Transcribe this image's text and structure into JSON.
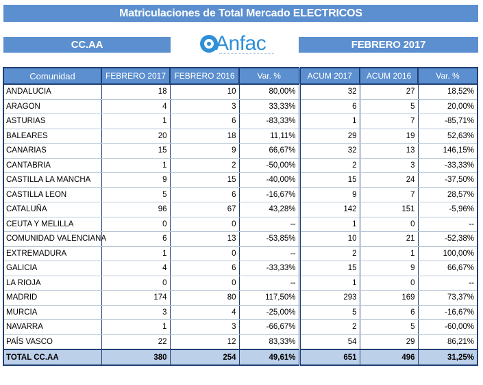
{
  "header": {
    "title": "Matriculaciones de Total Mercado ELECTRICOS",
    "left_label": "CC.AA",
    "right_label": "FEBRERO 2017",
    "logo_text": "Anfac"
  },
  "table": {
    "columns": [
      "Comunidad",
      "FEBRERO  2017",
      "FEBRERO  2016",
      "Var. %",
      "ACUM 2017",
      "ACUM 2016",
      "Var. %"
    ],
    "rows": [
      [
        "ANDALUCIA",
        "18",
        "10",
        "80,00%",
        "32",
        "27",
        "18,52%"
      ],
      [
        "ARAGON",
        "4",
        "3",
        "33,33%",
        "6",
        "5",
        "20,00%"
      ],
      [
        "ASTURIAS",
        "1",
        "6",
        "-83,33%",
        "1",
        "7",
        "-85,71%"
      ],
      [
        "BALEARES",
        "20",
        "18",
        "11,11%",
        "29",
        "19",
        "52,63%"
      ],
      [
        "CANARIAS",
        "15",
        "9",
        "66,67%",
        "32",
        "13",
        "146,15%"
      ],
      [
        "CANTABRIA",
        "1",
        "2",
        "-50,00%",
        "2",
        "3",
        "-33,33%"
      ],
      [
        "CASTILLA LA MANCHA",
        "9",
        "15",
        "-40,00%",
        "15",
        "24",
        "-37,50%"
      ],
      [
        "CASTILLA LEON",
        "5",
        "6",
        "-16,67%",
        "9",
        "7",
        "28,57%"
      ],
      [
        "CATALUÑA",
        "96",
        "67",
        "43,28%",
        "142",
        "151",
        "-5,96%"
      ],
      [
        "CEUTA Y MELILLA",
        "0",
        "0",
        "--",
        "1",
        "0",
        "--"
      ],
      [
        "COMUNIDAD VALENCIANA",
        "6",
        "13",
        "-53,85%",
        "10",
        "21",
        "-52,38%"
      ],
      [
        "EXTREMADURA",
        "1",
        "0",
        "--",
        "2",
        "1",
        "100,00%"
      ],
      [
        "GALICIA",
        "4",
        "6",
        "-33,33%",
        "15",
        "9",
        "66,67%"
      ],
      [
        "LA RIOJA",
        "0",
        "0",
        "--",
        "1",
        "0",
        "--"
      ],
      [
        "MADRID",
        "174",
        "80",
        "117,50%",
        "293",
        "169",
        "73,37%"
      ],
      [
        "MURCIA",
        "3",
        "4",
        "-25,00%",
        "5",
        "6",
        "-16,67%"
      ],
      [
        "NAVARRA",
        "1",
        "3",
        "-66,67%",
        "2",
        "5",
        "-60,00%"
      ],
      [
        "PAÍS VASCO",
        "22",
        "12",
        "83,33%",
        "54",
        "29",
        "86,21%"
      ]
    ],
    "total": [
      "TOTAL CC.AA",
      "380",
      "254",
      "49,61%",
      "651",
      "496",
      "31,25%"
    ]
  }
}
